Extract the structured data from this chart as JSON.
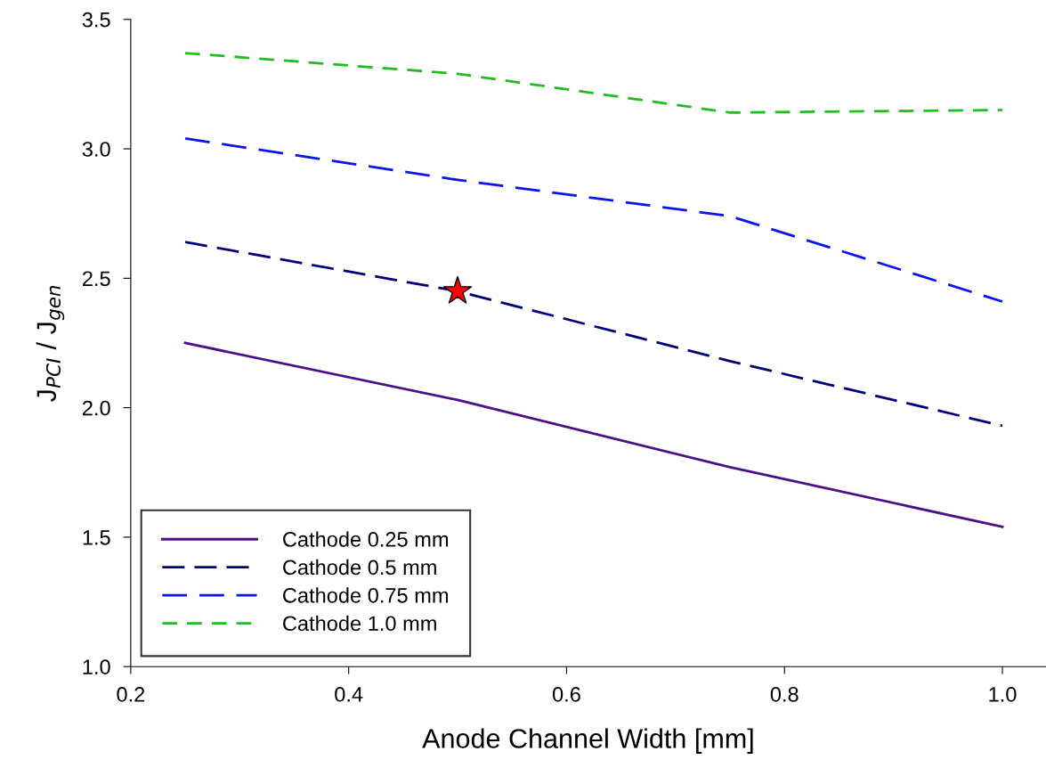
{
  "chart_data": {
    "type": "line",
    "xlabel": "Anode Channel Width [mm]",
    "ylabel": "J$_{PCI}$ / J$_{gen}$",
    "xlim": [
      0.2,
      1.04
    ],
    "xticks": [
      {
        "value": 0.2,
        "label": "0.2"
      },
      {
        "value": 0.4,
        "label": "0.4"
      },
      {
        "value": 0.6,
        "label": "0.6"
      },
      {
        "value": 0.8,
        "label": "0.8"
      },
      {
        "value": 1.0,
        "label": "1.0"
      }
    ],
    "ylim": [
      1.0,
      3.5
    ],
    "yticks": [
      {
        "value": 1.0,
        "label": "1.0"
      },
      {
        "value": 1.5,
        "label": "1.5"
      },
      {
        "value": 2.0,
        "label": "2.0"
      },
      {
        "value": 2.5,
        "label": "2.5"
      },
      {
        "value": 3.0,
        "label": "3.0"
      },
      {
        "value": 3.5,
        "label": "3.5"
      }
    ],
    "x": [
      0.25,
      0.5,
      0.75,
      1.0
    ],
    "grid": false,
    "legend": "bottom left",
    "series": [
      {
        "name": "Cathode 0.25 mm",
        "color": "#4b0f8c",
        "values": [
          2.25,
          2.03,
          1.77,
          1.54
        ],
        "line_style": "solid"
      },
      {
        "name": "Cathode 0.5 mm",
        "color": "#00007f",
        "values": [
          2.64,
          2.45,
          2.18,
          1.93
        ],
        "line_style": "dashed"
      },
      {
        "name": "Cathode 0.75 mm",
        "color": "#0a14f0",
        "values": [
          3.04,
          2.88,
          2.74,
          2.41
        ],
        "line_style": "dashed"
      },
      {
        "name": "Cathode 1.0 mm",
        "color": "#1ebe1e",
        "values": [
          3.37,
          3.29,
          3.14,
          3.15
        ],
        "line_style": "dashed"
      },
      {
        "type": "scatter",
        "color": "#ff0000",
        "x": [
          0.5
        ],
        "values": [
          2.45
        ],
        "marker": "star"
      }
    ]
  }
}
